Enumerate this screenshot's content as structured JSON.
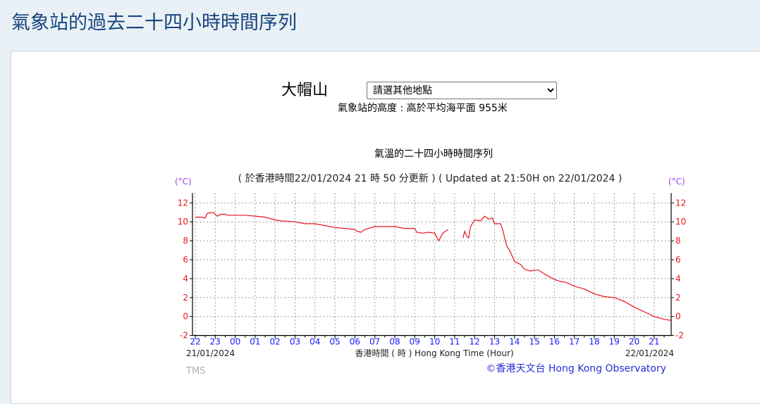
{
  "page": {
    "title": "氣象站的過去二十四小時時間序列"
  },
  "station": {
    "name": "大帽山",
    "select_value": "請選其他地點",
    "elevation": "氣象站的高度 : 高於平均海平面 955米"
  },
  "chart_data": {
    "type": "line",
    "title": "氣溫的二十四小時時間序列",
    "subtitle": "( 於香港時間22/01/2024 21 時 50 分更新 ) ( Updated at 21:50H on 22/01/2024 )",
    "ylabel_left": "(°C)",
    "ylabel_right": "(°C)",
    "xlabel": "香港時間 ( 時 )  Hong Kong Time (Hour)",
    "start_date": "21/01/2024",
    "end_date": "22/01/2024",
    "ylim": [
      -2,
      12
    ],
    "yticks": [
      "12",
      "10",
      "8",
      "6",
      "4",
      "2",
      "0",
      "-2"
    ],
    "xticks": [
      "22",
      "23",
      "00",
      "01",
      "02",
      "03",
      "04",
      "05",
      "06",
      "07",
      "08",
      "09",
      "10",
      "11",
      "12",
      "13",
      "14",
      "15",
      "16",
      "17",
      "18",
      "19",
      "20",
      "21"
    ],
    "grid": true,
    "colors": {
      "line": "#e8141b",
      "ytick": "#e8141b",
      "xtick": "#1a1aff",
      "unit": "#a13ee6",
      "grid": "#999999"
    },
    "series": [
      {
        "points": [
          [
            "22:00",
            10.5
          ],
          [
            "22:18",
            10.5
          ],
          [
            "22:30",
            10.4
          ],
          [
            "22:36",
            10.9
          ],
          [
            "22:54",
            11.0
          ],
          [
            "23:00",
            10.8
          ],
          [
            "23:06",
            10.6
          ],
          [
            "23:18",
            10.8
          ],
          [
            "23:30",
            10.8
          ],
          [
            "23:36",
            10.7
          ],
          [
            "00:00",
            10.7
          ],
          [
            "00:30",
            10.7
          ],
          [
            "01:00",
            10.6
          ],
          [
            "01:30",
            10.5
          ],
          [
            "02:00",
            10.2
          ],
          [
            "02:18",
            10.1
          ],
          [
            "03:00",
            10.0
          ],
          [
            "03:30",
            9.8
          ],
          [
            "04:00",
            9.8
          ],
          [
            "04:30",
            9.6
          ],
          [
            "05:00",
            9.4
          ],
          [
            "05:30",
            9.3
          ],
          [
            "06:00",
            9.2
          ],
          [
            "06:06",
            9.0
          ],
          [
            "06:18",
            8.9
          ],
          [
            "06:30",
            9.2
          ],
          [
            "07:00",
            9.5
          ],
          [
            "07:30",
            9.5
          ],
          [
            "08:00",
            9.5
          ],
          [
            "08:30",
            9.3
          ],
          [
            "09:00",
            9.3
          ],
          [
            "09:06",
            8.9
          ],
          [
            "09:24",
            8.8
          ],
          [
            "09:42",
            8.9
          ],
          [
            "10:00",
            8.8
          ],
          [
            "10:06",
            8.4
          ],
          [
            "10:12",
            8.0
          ],
          [
            "10:24",
            8.8
          ],
          [
            "10:40",
            9.2
          ],
          null,
          [
            "11:25",
            8.3
          ],
          [
            "11:30",
            9.0
          ],
          [
            "11:36",
            8.5
          ],
          [
            "11:42",
            8.3
          ],
          [
            "11:48",
            9.5
          ],
          [
            "12:00",
            10.2
          ],
          [
            "12:18",
            10.1
          ],
          [
            "12:30",
            10.6
          ],
          [
            "12:42",
            10.3
          ],
          [
            "12:54",
            10.4
          ],
          [
            "13:00",
            9.8
          ],
          [
            "13:18",
            9.8
          ],
          [
            "13:24",
            9.2
          ],
          [
            "13:36",
            7.5
          ],
          [
            "13:48",
            6.8
          ],
          [
            "14:00",
            5.8
          ],
          [
            "14:18",
            5.5
          ],
          [
            "14:30",
            5.0
          ],
          [
            "14:48",
            4.8
          ],
          [
            "15:00",
            4.9
          ],
          [
            "15:12",
            4.9
          ],
          [
            "15:30",
            4.5
          ],
          [
            "16:00",
            3.9
          ],
          [
            "16:18",
            3.7
          ],
          [
            "16:36",
            3.6
          ],
          [
            "17:00",
            3.2
          ],
          [
            "17:30",
            2.9
          ],
          [
            "18:00",
            2.4
          ],
          [
            "18:30",
            2.1
          ],
          [
            "19:00",
            2.0
          ],
          [
            "19:30",
            1.6
          ],
          [
            "20:00",
            1.0
          ],
          [
            "20:30",
            0.5
          ],
          [
            "21:00",
            0.0
          ],
          [
            "21:30",
            -0.3
          ],
          [
            "21:50",
            -0.4
          ]
        ]
      }
    ]
  },
  "footer": {
    "tms": "TMS",
    "copyright": "©香港天文台 Hong Kong Observatory"
  }
}
